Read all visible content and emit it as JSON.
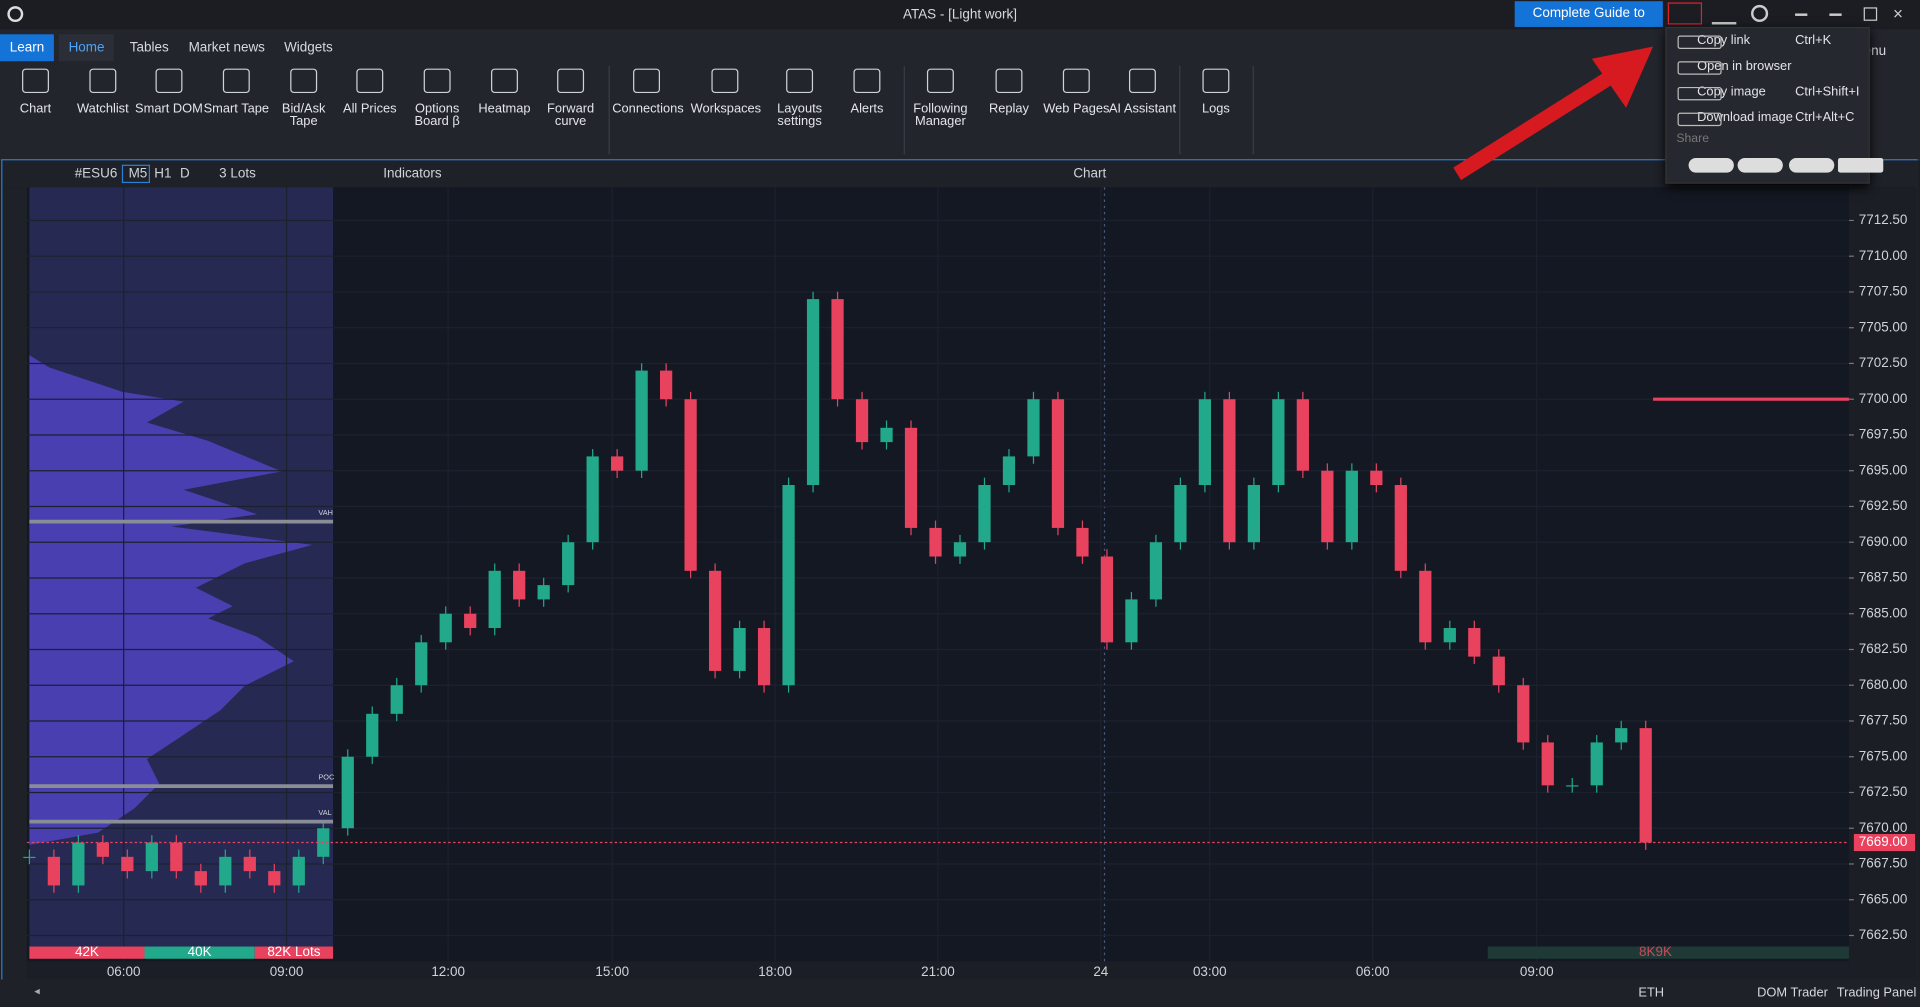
{
  "window": {
    "title": "ATAS - [Light work]",
    "guide_button": "Complete Guide to ATAS",
    "partial_menu": "enu"
  },
  "tabs": [
    "Learn",
    "Home",
    "Tables",
    "Market news",
    "Widgets"
  ],
  "ribbon": [
    "Chart",
    "Watchlist",
    "Smart DOM",
    "Smart Tape",
    "Bid/Ask Tape",
    "All Prices",
    "Options Board β",
    "Heatmap",
    "Forward curve",
    "Connections",
    "Workspaces",
    "Layouts settings",
    "Alerts",
    "Following Manager",
    "Replay",
    "Web Pages",
    "AI Assistant",
    "Logs"
  ],
  "share_menu": {
    "items": [
      {
        "label": "Copy link",
        "shortcut": "Ctrl+K"
      },
      {
        "label": "Open in browser",
        "shortcut": ""
      },
      {
        "label": "Copy image",
        "shortcut": "Ctrl+Shift+I"
      },
      {
        "label": "Download image",
        "shortcut": "Ctrl+Alt+C"
      }
    ],
    "share": "Share"
  },
  "chart_header": {
    "symbol": "#ESU6",
    "timeframes": [
      "M5",
      "H1",
      "D"
    ],
    "lots": "3 Lots",
    "indicators": "Indicators",
    "title": "Chart"
  },
  "chart_data": {
    "type": "candlestick",
    "close": [
      7668,
      7666,
      7669,
      7668,
      7667,
      7669,
      7667,
      7666,
      7668,
      7667,
      7666,
      7668,
      7670,
      7675,
      7678,
      7680,
      7683,
      7685,
      7684,
      7688,
      7686,
      7687,
      7690,
      7696,
      7695,
      7702,
      7700,
      7688,
      7681,
      7684,
      7680,
      7694,
      7707,
      7700,
      7697,
      7698,
      7691,
      7689,
      7690,
      7694,
      7696,
      7700,
      7691,
      7689,
      7683,
      7686,
      7690,
      7694,
      7700,
      7690,
      7694,
      7700,
      7695,
      7690,
      7695,
      7694,
      7688,
      7683,
      7684,
      7682,
      7680,
      7676,
      7673,
      7673,
      7676,
      7677,
      7669
    ],
    "ylim": [
      7660.7,
      7714.9
    ],
    "yticks": [
      {
        "value": 7712.5,
        "label": "7712.50"
      },
      {
        "value": 7710,
        "label": "7710.00"
      },
      {
        "value": 7707.5,
        "label": "7707.50"
      },
      {
        "value": 7705,
        "label": "7705.00"
      },
      {
        "value": 7702.5,
        "label": "7702.50"
      },
      {
        "value": 7700,
        "label": "7700.00"
      },
      {
        "value": 7697.5,
        "label": "7697.50"
      },
      {
        "value": 7695,
        "label": "7695.00"
      },
      {
        "value": 7692.5,
        "label": "7692.50"
      },
      {
        "value": 7690,
        "label": "7690.00"
      },
      {
        "value": 7687.5,
        "label": "7687.50"
      },
      {
        "value": 7685,
        "label": "7685.00"
      },
      {
        "value": 7682.5,
        "label": "7682.50"
      },
      {
        "value": 7680,
        "label": "7680.00"
      },
      {
        "value": 7677.5,
        "label": "7677.50"
      },
      {
        "value": 7675,
        "label": "7675.00"
      },
      {
        "value": 7672.5,
        "label": "7672.50"
      },
      {
        "value": 7670,
        "label": "7670.00"
      },
      {
        "value": 7667.5,
        "label": "7667.50"
      },
      {
        "value": 7665,
        "label": "7665.00"
      },
      {
        "value": 7662.5,
        "label": "7662.50"
      }
    ],
    "x_labels": [
      "06:00",
      "09:00",
      "12:00",
      "15:00",
      "18:00",
      "21:00",
      "24",
      "03:00",
      "06:00",
      "09:00"
    ],
    "last_price": {
      "value": 7669,
      "label": "7669.00"
    },
    "level": 7700,
    "up_color": "#22a88a",
    "down_color": "#e8425f"
  },
  "profile_labels": [
    "VAH",
    "POC",
    "VAL"
  ],
  "volume_bar": [
    "42K",
    "40K",
    "82K Lots"
  ],
  "delta_label": "8K9K",
  "status_bar": [
    "ETH",
    "DOM Trader",
    "Trading Panel"
  ]
}
